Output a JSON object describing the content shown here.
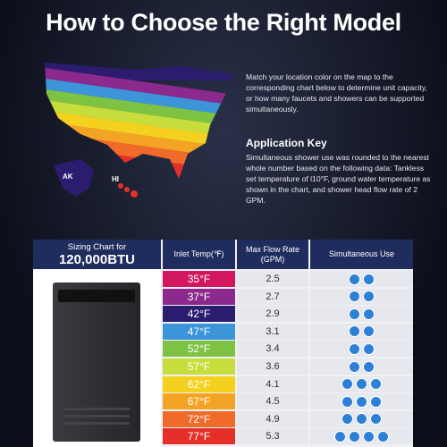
{
  "header": {
    "title": "How to Choose the Right Model"
  },
  "map": {
    "labels": [
      "AK",
      "HI"
    ]
  },
  "intro": "Match your location color on the map to the corresponding chart below to determine unit capacity, or how many faucets and showers can be supported simultaneously.",
  "application_key": {
    "title": "Application Key",
    "text": "Simultaneous shower use was rounded to the nearest whole number based on the following data: Tankless set temperature of l10°F, ground water temperature as shown in the chart, and shower head flow rate of 2 GPM."
  },
  "table": {
    "caption": "Sizing Chart for",
    "model": "120,000BTU",
    "columns": [
      "Inlet Temp(℉)",
      "Max Flow Rate (GPM)",
      "Simultaneous Use"
    ],
    "rows": [
      {
        "temp": "35°F",
        "color": "#d3175e",
        "flow": "2.5",
        "showers": 2
      },
      {
        "temp": "37°F",
        "color": "#8b2a8c",
        "flow": "2.7",
        "showers": 2
      },
      {
        "temp": "42°F",
        "color": "#2b1c6f",
        "flow": "2.9",
        "showers": 2
      },
      {
        "temp": "47°F",
        "color": "#3b95d8",
        "flow": "3.1",
        "showers": 2
      },
      {
        "temp": "52°F",
        "color": "#7dc242",
        "flow": "3.4",
        "showers": 2
      },
      {
        "temp": "57°F",
        "color": "#c6dd3b",
        "flow": "3.6",
        "showers": 2
      },
      {
        "temp": "62°F",
        "color": "#f4d11f",
        "flow": "4.1",
        "showers": 3
      },
      {
        "temp": "67°F",
        "color": "#f4a424",
        "flow": "4.5",
        "showers": 3
      },
      {
        "temp": "72°F",
        "color": "#f06a2a",
        "flow": "4.9",
        "showers": 3
      },
      {
        "temp": "77°F",
        "color": "#e5302a",
        "flow": "5.3",
        "showers": 4
      }
    ]
  }
}
